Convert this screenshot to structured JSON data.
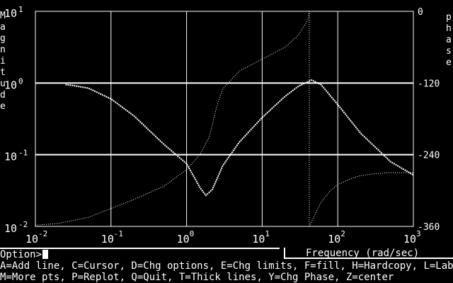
{
  "chart_data": {
    "type": "line",
    "x_scale": "log",
    "xlim": [
      0.01,
      1000
    ],
    "left_axis": {
      "label": "Magnitude",
      "scale": "log",
      "ticks": [
        {
          "base": "10",
          "exp": "1"
        },
        {
          "base": "10",
          "exp": "0"
        },
        {
          "base": "10",
          "exp": "-1"
        },
        {
          "base": "10",
          "exp": "-2"
        }
      ],
      "ylim": [
        0.01,
        10
      ]
    },
    "right_axis": {
      "label": "phase",
      "ticks": [
        "0",
        "-120",
        "-240",
        "-360"
      ],
      "ylim": [
        -360,
        0
      ]
    },
    "x_ticks": [
      {
        "base": "10",
        "exp": "-2"
      },
      {
        "base": "10",
        "exp": "-1"
      },
      {
        "base": "10",
        "exp": "0"
      },
      {
        "base": "10",
        "exp": "1"
      },
      {
        "base": "10",
        "exp": "2"
      },
      {
        "base": "10",
        "exp": "3"
      }
    ],
    "grid": true,
    "cursor_frequency": 42,
    "series": [
      {
        "axis": "left",
        "style": "dotted-thick",
        "x": [
          0.025,
          0.03,
          0.05,
          0.1,
          0.2,
          0.5,
          1,
          1.5,
          1.8,
          2.2,
          3,
          5,
          10,
          20,
          30,
          45,
          60,
          100,
          200,
          500,
          1000
        ],
        "y": [
          0.95,
          0.93,
          0.85,
          0.6,
          0.35,
          0.14,
          0.075,
          0.035,
          0.027,
          0.033,
          0.07,
          0.15,
          0.33,
          0.65,
          0.9,
          1.1,
          0.95,
          0.5,
          0.2,
          0.08,
          0.052
        ]
      },
      {
        "axis": "right",
        "style": "dotted-thin",
        "x": [
          0.01,
          0.02,
          0.05,
          0.1,
          0.2,
          0.5,
          1,
          1.5,
          2,
          2.5,
          3,
          5,
          10,
          20,
          30,
          40,
          42
        ],
        "y": [
          -358,
          -355,
          -345,
          -330,
          -315,
          -293,
          -265,
          -240,
          -210,
          -160,
          -130,
          -100,
          -80,
          -60,
          -40,
          -15,
          0
        ]
      },
      {
        "axis": "right",
        "style": "dotted-thin",
        "x": [
          42,
          50,
          60,
          80,
          100,
          150,
          200,
          300,
          500,
          1000
        ],
        "y": [
          -360,
          -340,
          -320,
          -300,
          -290,
          -280,
          -275,
          -272,
          -270,
          -270
        ]
      }
    ]
  },
  "prompt": {
    "label": "Option>"
  },
  "frequency_label": "Frequency (rad/sec)",
  "menu": {
    "line1": "A=Add line, C=Cursor, D=Chg options, E=Chg limits, F=fill, H=Hardcopy, L=Label",
    "line2": "M=More pts, P=Replot, Q=Quit, T=Thick lines, Y=Chg Phase, Z=center"
  }
}
